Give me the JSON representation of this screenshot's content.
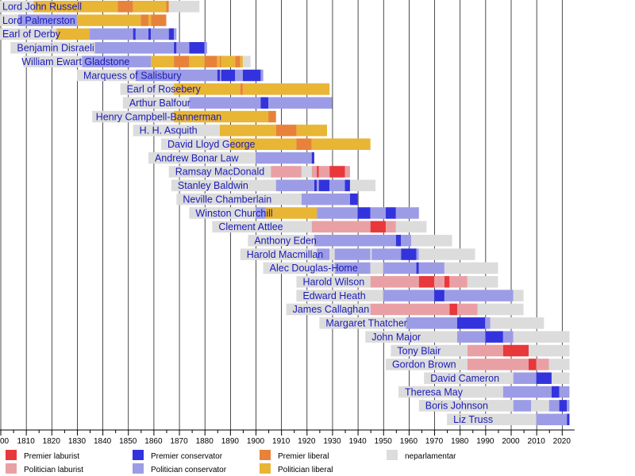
{
  "chart_data": {
    "type": "timeline",
    "title": "",
    "xlabel": "",
    "ylabel": "",
    "xlim": [
      1800,
      2025
    ],
    "grid": true,
    "x_ticks": [
      1800,
      1810,
      1820,
      1830,
      1840,
      1850,
      1860,
      1870,
      1880,
      1890,
      1900,
      1910,
      1920,
      1930,
      1940,
      1950,
      1960,
      1970,
      1980,
      1990,
      2000,
      2010,
      2020
    ],
    "tick_labels": [
      "00",
      "1810",
      "1820",
      "1830",
      "1840",
      "1850",
      "1860",
      "1870",
      "1880",
      "1890",
      "1900",
      "1910",
      "1920",
      "1930",
      "1940",
      "1950",
      "1960",
      "1970",
      "1980",
      "1990",
      "2000",
      "2010",
      "2020"
    ],
    "legend_position": "bottom",
    "categories": {
      "LP": {
        "label": "Premier laburist",
        "color": "#e8383c"
      },
      "LM": {
        "label": "Politician laburist",
        "color": "#e9a0a5"
      },
      "CP": {
        "label": "Premier conservator",
        "color": "#3333dd"
      },
      "CM": {
        "label": "Politician conservator",
        "color": "#9c9ce6"
      },
      "BP": {
        "label": "Premier liberal",
        "color": "#e8823a"
      },
      "BM": {
        "label": "Politician liberal",
        "color": "#e8b535"
      },
      "N": {
        "label": "neparlamentar",
        "color": "#dcdcdc"
      }
    },
    "legend": [
      {
        "key": "LP",
        "label": "Premier laburist"
      },
      {
        "key": "LM",
        "label": "Politician laburist"
      },
      {
        "key": "CP",
        "label": "Premier conservator"
      },
      {
        "key": "CM",
        "label": "Politician conservator"
      },
      {
        "key": "BP",
        "label": "Premier liberal"
      },
      {
        "key": "BM",
        "label": "Politician liberal"
      },
      {
        "key": "N",
        "label": "neparlamentar"
      }
    ],
    "series": [
      {
        "name": "Lord John Russell",
        "segments": [
          [
            "N",
            1792,
            1813
          ],
          [
            "BM",
            1813,
            1846
          ],
          [
            "BP",
            1846,
            1852
          ],
          [
            "BM",
            1852,
            1865
          ],
          [
            "BP",
            1865,
            1866
          ],
          [
            "N",
            1866,
            1878
          ]
        ]
      },
      {
        "name": "Lord Palmerston",
        "segments": [
          [
            "N",
            1784,
            1807
          ],
          [
            "CM",
            1807,
            1830
          ],
          [
            "BM",
            1830,
            1855
          ],
          [
            "BP",
            1855,
            1858
          ],
          [
            "BM",
            1858,
            1859
          ],
          [
            "BP",
            1859,
            1865
          ]
        ]
      },
      {
        "name": "Earl of Derby",
        "segments": [
          [
            "N",
            1799,
            1822
          ],
          [
            "BM",
            1822,
            1835
          ],
          [
            "CM",
            1835,
            1852
          ],
          [
            "CP",
            1852,
            1853
          ],
          [
            "CM",
            1853,
            1858
          ],
          [
            "CP",
            1858,
            1859
          ],
          [
            "CM",
            1859,
            1866
          ],
          [
            "CP",
            1866,
            1868
          ],
          [
            "CM",
            1868,
            1869
          ]
        ]
      },
      {
        "name": "Benjamin Disraeli",
        "segments": [
          [
            "N",
            1804,
            1837
          ],
          [
            "CM",
            1837,
            1868
          ],
          [
            "CP",
            1868,
            1869
          ],
          [
            "CM",
            1869,
            1874
          ],
          [
            "CP",
            1874,
            1880
          ],
          [
            "CM",
            1880,
            1881
          ]
        ]
      },
      {
        "name": "William Ewart Gladstone",
        "segments": [
          [
            "N",
            1809,
            1832
          ],
          [
            "CM",
            1832,
            1859
          ],
          [
            "BM",
            1859,
            1868
          ],
          [
            "BP",
            1868,
            1874
          ],
          [
            "BM",
            1874,
            1880
          ],
          [
            "BP",
            1880,
            1885
          ],
          [
            "BM",
            1885,
            1886
          ],
          [
            "BP",
            1886,
            1886.5
          ],
          [
            "BM",
            1886.5,
            1892
          ],
          [
            "BP",
            1892,
            1894
          ],
          [
            "BM",
            1894,
            1895
          ],
          [
            "N",
            1895,
            1898
          ]
        ]
      },
      {
        "name": "Marquess of Salisbury",
        "segments": [
          [
            "N",
            1830,
            1853
          ],
          [
            "CM",
            1853,
            1885
          ],
          [
            "CP",
            1885,
            1886
          ],
          [
            "CM",
            1886,
            1886.5
          ],
          [
            "CP",
            1886.5,
            1892
          ],
          [
            "CM",
            1892,
            1895
          ],
          [
            "CP",
            1895,
            1902
          ],
          [
            "CM",
            1902,
            1903
          ]
        ]
      },
      {
        "name": "Earl of Rosebery",
        "segments": [
          [
            "N",
            1847,
            1868
          ],
          [
            "BM",
            1868,
            1894
          ],
          [
            "BP",
            1894,
            1895
          ],
          [
            "BM",
            1895,
            1929
          ]
        ]
      },
      {
        "name": "Arthur Balfour",
        "segments": [
          [
            "N",
            1848,
            1874
          ],
          [
            "CM",
            1874,
            1902
          ],
          [
            "CP",
            1902,
            1905
          ],
          [
            "CM",
            1905,
            1930
          ]
        ]
      },
      {
        "name": "Henry Campbell-Bannerman",
        "segments": [
          [
            "N",
            1836,
            1868
          ],
          [
            "BM",
            1868,
            1905
          ],
          [
            "BP",
            1905,
            1908
          ]
        ]
      },
      {
        "name": "H. H. Asquith",
        "segments": [
          [
            "N",
            1852,
            1886
          ],
          [
            "BM",
            1886,
            1908
          ],
          [
            "BP",
            1908,
            1916
          ],
          [
            "BM",
            1916,
            1928
          ]
        ]
      },
      {
        "name": "David Lloyd George",
        "segments": [
          [
            "N",
            1863,
            1890
          ],
          [
            "BM",
            1890,
            1916
          ],
          [
            "BP",
            1916,
            1922
          ],
          [
            "BM",
            1922,
            1945
          ]
        ]
      },
      {
        "name": "Andrew Bonar Law",
        "segments": [
          [
            "N",
            1858,
            1900
          ],
          [
            "CM",
            1900,
            1922
          ],
          [
            "CP",
            1922,
            1923
          ]
        ]
      },
      {
        "name": "Ramsay MacDonald",
        "segments": [
          [
            "N",
            1866,
            1906
          ],
          [
            "LM",
            1906,
            1918
          ],
          [
            "N",
            1918,
            1922
          ],
          [
            "LM",
            1922,
            1924
          ],
          [
            "LP",
            1924,
            1924.8
          ],
          [
            "LM",
            1924.8,
            1929
          ],
          [
            "LP",
            1929,
            1935
          ],
          [
            "LM",
            1935,
            1937
          ]
        ]
      },
      {
        "name": "Stanley Baldwin",
        "segments": [
          [
            "N",
            1867,
            1908
          ],
          [
            "CM",
            1908,
            1923
          ],
          [
            "CP",
            1923,
            1924
          ],
          [
            "CM",
            1924,
            1924.8
          ],
          [
            "CP",
            1924.8,
            1929
          ],
          [
            "CM",
            1929,
            1935
          ],
          [
            "CP",
            1935,
            1937
          ],
          [
            "N",
            1937,
            1947
          ]
        ]
      },
      {
        "name": "Neville Chamberlain",
        "segments": [
          [
            "N",
            1869,
            1918
          ],
          [
            "CM",
            1918,
            1937
          ],
          [
            "CP",
            1937,
            1940
          ]
        ]
      },
      {
        "name": "Winston Churchill",
        "segments": [
          [
            "N",
            1874,
            1900
          ],
          [
            "CM",
            1900,
            1904
          ],
          [
            "BM",
            1904,
            1924
          ],
          [
            "CM",
            1924,
            1940
          ],
          [
            "CP",
            1940,
            1945
          ],
          [
            "CM",
            1945,
            1951
          ],
          [
            "CP",
            1951,
            1955
          ],
          [
            "CM",
            1955,
            1964
          ]
        ]
      },
      {
        "name": "Clement Attlee",
        "segments": [
          [
            "N",
            1883,
            1922
          ],
          [
            "LM",
            1922,
            1945
          ],
          [
            "LP",
            1945,
            1951
          ],
          [
            "LM",
            1951,
            1955
          ],
          [
            "N",
            1955,
            1967
          ]
        ]
      },
      {
        "name": "Anthony Eden",
        "segments": [
          [
            "N",
            1897,
            1923
          ],
          [
            "CM",
            1923,
            1955
          ],
          [
            "CP",
            1955,
            1957
          ],
          [
            "CM",
            1957,
            1961
          ],
          [
            "N",
            1961,
            1977
          ]
        ]
      },
      {
        "name": "Harold Macmillan",
        "segments": [
          [
            "N",
            1894,
            1924
          ],
          [
            "CM",
            1924,
            1929
          ],
          [
            "N",
            1929,
            1931
          ],
          [
            "CM",
            1931,
            1945
          ],
          [
            "N",
            1945,
            1945.5
          ],
          [
            "CM",
            1945.5,
            1957
          ],
          [
            "CP",
            1957,
            1963
          ],
          [
            "CM",
            1963,
            1964
          ],
          [
            "N",
            1964,
            1986
          ]
        ]
      },
      {
        "name": "Alec Douglas-Home",
        "segments": [
          [
            "N",
            1903,
            1931
          ],
          [
            "CM",
            1931,
            1945
          ],
          [
            "N",
            1945,
            1950
          ],
          [
            "CM",
            1950,
            1963
          ],
          [
            "CP",
            1963,
            1964
          ],
          [
            "CM",
            1964,
            1974
          ],
          [
            "N",
            1974,
            1995
          ]
        ]
      },
      {
        "name": "Harold Wilson",
        "segments": [
          [
            "N",
            1916,
            1945
          ],
          [
            "LM",
            1945,
            1964
          ],
          [
            "LP",
            1964,
            1970
          ],
          [
            "LM",
            1970,
            1974
          ],
          [
            "LP",
            1974,
            1976
          ],
          [
            "LM",
            1976,
            1983
          ],
          [
            "N",
            1983,
            1995
          ]
        ]
      },
      {
        "name": "Edward Heath",
        "segments": [
          [
            "N",
            1916,
            1950
          ],
          [
            "CM",
            1950,
            1970
          ],
          [
            "CP",
            1970,
            1974
          ],
          [
            "CM",
            1974,
            2001
          ],
          [
            "N",
            2001,
            2005
          ]
        ]
      },
      {
        "name": "James Callaghan",
        "segments": [
          [
            "N",
            1912,
            1945
          ],
          [
            "LM",
            1945,
            1976
          ],
          [
            "LP",
            1976,
            1979
          ],
          [
            "LM",
            1979,
            1987
          ],
          [
            "N",
            1987,
            2005
          ]
        ]
      },
      {
        "name": "Margaret Thatcher",
        "segments": [
          [
            "N",
            1925,
            1959
          ],
          [
            "CM",
            1959,
            1979
          ],
          [
            "CP",
            1979,
            1990
          ],
          [
            "CM",
            1990,
            1992
          ],
          [
            "N",
            1992,
            2013
          ]
        ]
      },
      {
        "name": "John Major",
        "segments": [
          [
            "N",
            1943,
            1979
          ],
          [
            "CM",
            1979,
            1990
          ],
          [
            "CP",
            1990,
            1997
          ],
          [
            "CM",
            1997,
            2001
          ],
          [
            "N",
            2001,
            2023
          ]
        ]
      },
      {
        "name": "Tony Blair",
        "segments": [
          [
            "N",
            1953,
            1983
          ],
          [
            "LM",
            1983,
            1997
          ],
          [
            "LP",
            1997,
            2007
          ],
          [
            "N",
            2007,
            2023
          ]
        ]
      },
      {
        "name": "Gordon Brown",
        "segments": [
          [
            "N",
            1951,
            1983
          ],
          [
            "LM",
            1983,
            2007
          ],
          [
            "LP",
            2007,
            2010
          ],
          [
            "LM",
            2010,
            2015
          ],
          [
            "N",
            2015,
            2023
          ]
        ]
      },
      {
        "name": "David Cameron",
        "segments": [
          [
            "N",
            1966,
            2001
          ],
          [
            "CM",
            2001,
            2010
          ],
          [
            "CP",
            2010,
            2016
          ],
          [
            "N",
            2016,
            2023
          ]
        ]
      },
      {
        "name": "Theresa May",
        "segments": [
          [
            "N",
            1956,
            1997
          ],
          [
            "CM",
            1997,
            2016
          ],
          [
            "CP",
            2016,
            2019
          ],
          [
            "CM",
            2019,
            2023
          ]
        ]
      },
      {
        "name": "Boris Johnson",
        "segments": [
          [
            "N",
            1964,
            2001
          ],
          [
            "CM",
            2001,
            2008
          ],
          [
            "N",
            2008,
            2015
          ],
          [
            "CM",
            2015,
            2019
          ],
          [
            "CP",
            2019,
            2022
          ],
          [
            "CM",
            2022,
            2023
          ]
        ]
      },
      {
        "name": "Liz Truss",
        "segments": [
          [
            "N",
            1975,
            2010
          ],
          [
            "CM",
            2010,
            2022
          ],
          [
            "CP",
            2022,
            2023
          ]
        ]
      }
    ]
  }
}
